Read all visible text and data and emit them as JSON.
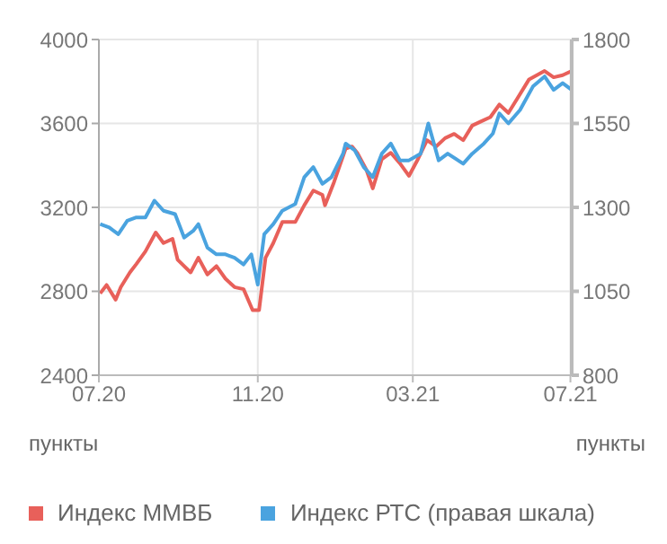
{
  "chart_data": {
    "type": "line",
    "ylabel": "пункты",
    "y2label": "пункты",
    "xlim": [
      "2020-07-01",
      "2021-07-02"
    ],
    "xticks": [
      {
        "value": "2020-07-01",
        "label": "07.20"
      },
      {
        "value": "2020-11-01",
        "label": "11.20"
      },
      {
        "value": "2021-03-01",
        "label": "03.21"
      },
      {
        "value": "2021-07-01",
        "label": "07.21"
      }
    ],
    "ylim": [
      2400,
      4000
    ],
    "yticks": [
      2400,
      2800,
      3200,
      3600,
      4000
    ],
    "y2lim": [
      800,
      1800
    ],
    "y2ticks": [
      800,
      1050,
      1300,
      1550,
      1800
    ],
    "grid": true,
    "legend": "bottom",
    "marker": "none",
    "line_style": "solid",
    "series": [
      {
        "name": "Индекс ММВБ",
        "color": "#e8605a",
        "x": [
          "2020-07-02",
          "2020-07-07",
          "2020-07-14",
          "2020-07-18",
          "2020-07-25",
          "2020-07-30",
          "2020-08-06",
          "2020-08-14",
          "2020-08-20",
          "2020-08-27",
          "2020-08-31",
          "2020-09-10",
          "2020-09-16",
          "2020-09-23",
          "2020-09-30",
          "2020-10-07",
          "2020-10-14",
          "2020-10-21",
          "2020-10-28",
          "2020-11-02",
          "2020-11-07",
          "2020-11-13",
          "2020-11-20",
          "2020-11-30",
          "2020-12-07",
          "2020-12-14",
          "2020-12-21",
          "2020-12-23",
          "2020-12-30",
          "2021-01-08",
          "2021-01-13",
          "2021-01-17",
          "2021-01-24",
          "2021-01-29",
          "2021-02-05",
          "2021-02-12",
          "2021-02-19",
          "2021-02-26",
          "2021-03-05",
          "2021-03-12",
          "2021-03-19",
          "2021-03-26",
          "2021-04-02",
          "2021-04-09",
          "2021-04-16",
          "2021-04-23",
          "2021-04-30",
          "2021-05-07",
          "2021-05-14",
          "2021-05-21",
          "2021-05-30",
          "2021-06-11",
          "2021-06-18",
          "2021-06-25",
          "2021-07-02"
        ],
        "values": [
          2790,
          2830,
          2760,
          2820,
          2890,
          2930,
          2990,
          3080,
          3030,
          3050,
          2950,
          2890,
          2960,
          2880,
          2920,
          2860,
          2820,
          2810,
          2710,
          2710,
          2960,
          3030,
          3130,
          3130,
          3210,
          3280,
          3260,
          3210,
          3320,
          3480,
          3490,
          3460,
          3380,
          3290,
          3430,
          3460,
          3410,
          3350,
          3430,
          3520,
          3490,
          3530,
          3550,
          3520,
          3590,
          3610,
          3630,
          3690,
          3650,
          3720,
          3810,
          3850,
          3820,
          3830,
          3850
        ]
      },
      {
        "name": "Индекс РТС (правая шкала)",
        "color": "#4aa3df",
        "axis": "y2",
        "x": [
          "2020-07-02",
          "2020-07-09",
          "2020-07-16",
          "2020-07-23",
          "2020-07-30",
          "2020-08-06",
          "2020-08-13",
          "2020-08-20",
          "2020-08-29",
          "2020-09-05",
          "2020-09-12",
          "2020-09-16",
          "2020-09-23",
          "2020-09-30",
          "2020-10-07",
          "2020-10-14",
          "2020-10-21",
          "2020-10-27",
          "2020-11-01",
          "2020-11-06",
          "2020-11-13",
          "2020-11-20",
          "2020-11-30",
          "2020-12-07",
          "2020-12-14",
          "2020-12-21",
          "2020-12-28",
          "2021-01-06",
          "2021-01-08",
          "2021-01-15",
          "2021-01-22",
          "2021-01-29",
          "2021-02-05",
          "2021-02-12",
          "2021-02-19",
          "2021-02-26",
          "2021-03-07",
          "2021-03-13",
          "2021-03-21",
          "2021-03-28",
          "2021-04-09",
          "2021-04-16",
          "2021-04-25",
          "2021-05-02",
          "2021-05-07",
          "2021-05-14",
          "2021-05-23",
          "2021-06-02",
          "2021-06-11",
          "2021-06-18",
          "2021-06-25",
          "2021-07-02"
        ],
        "values": [
          1250,
          1240,
          1220,
          1260,
          1270,
          1270,
          1320,
          1290,
          1280,
          1210,
          1230,
          1250,
          1180,
          1160,
          1160,
          1150,
          1130,
          1160,
          1070,
          1220,
          1250,
          1290,
          1310,
          1390,
          1420,
          1370,
          1390,
          1460,
          1490,
          1470,
          1420,
          1390,
          1460,
          1490,
          1440,
          1440,
          1460,
          1550,
          1440,
          1460,
          1430,
          1460,
          1490,
          1520,
          1580,
          1550,
          1590,
          1660,
          1690,
          1650,
          1670,
          1650
        ]
      }
    ]
  }
}
